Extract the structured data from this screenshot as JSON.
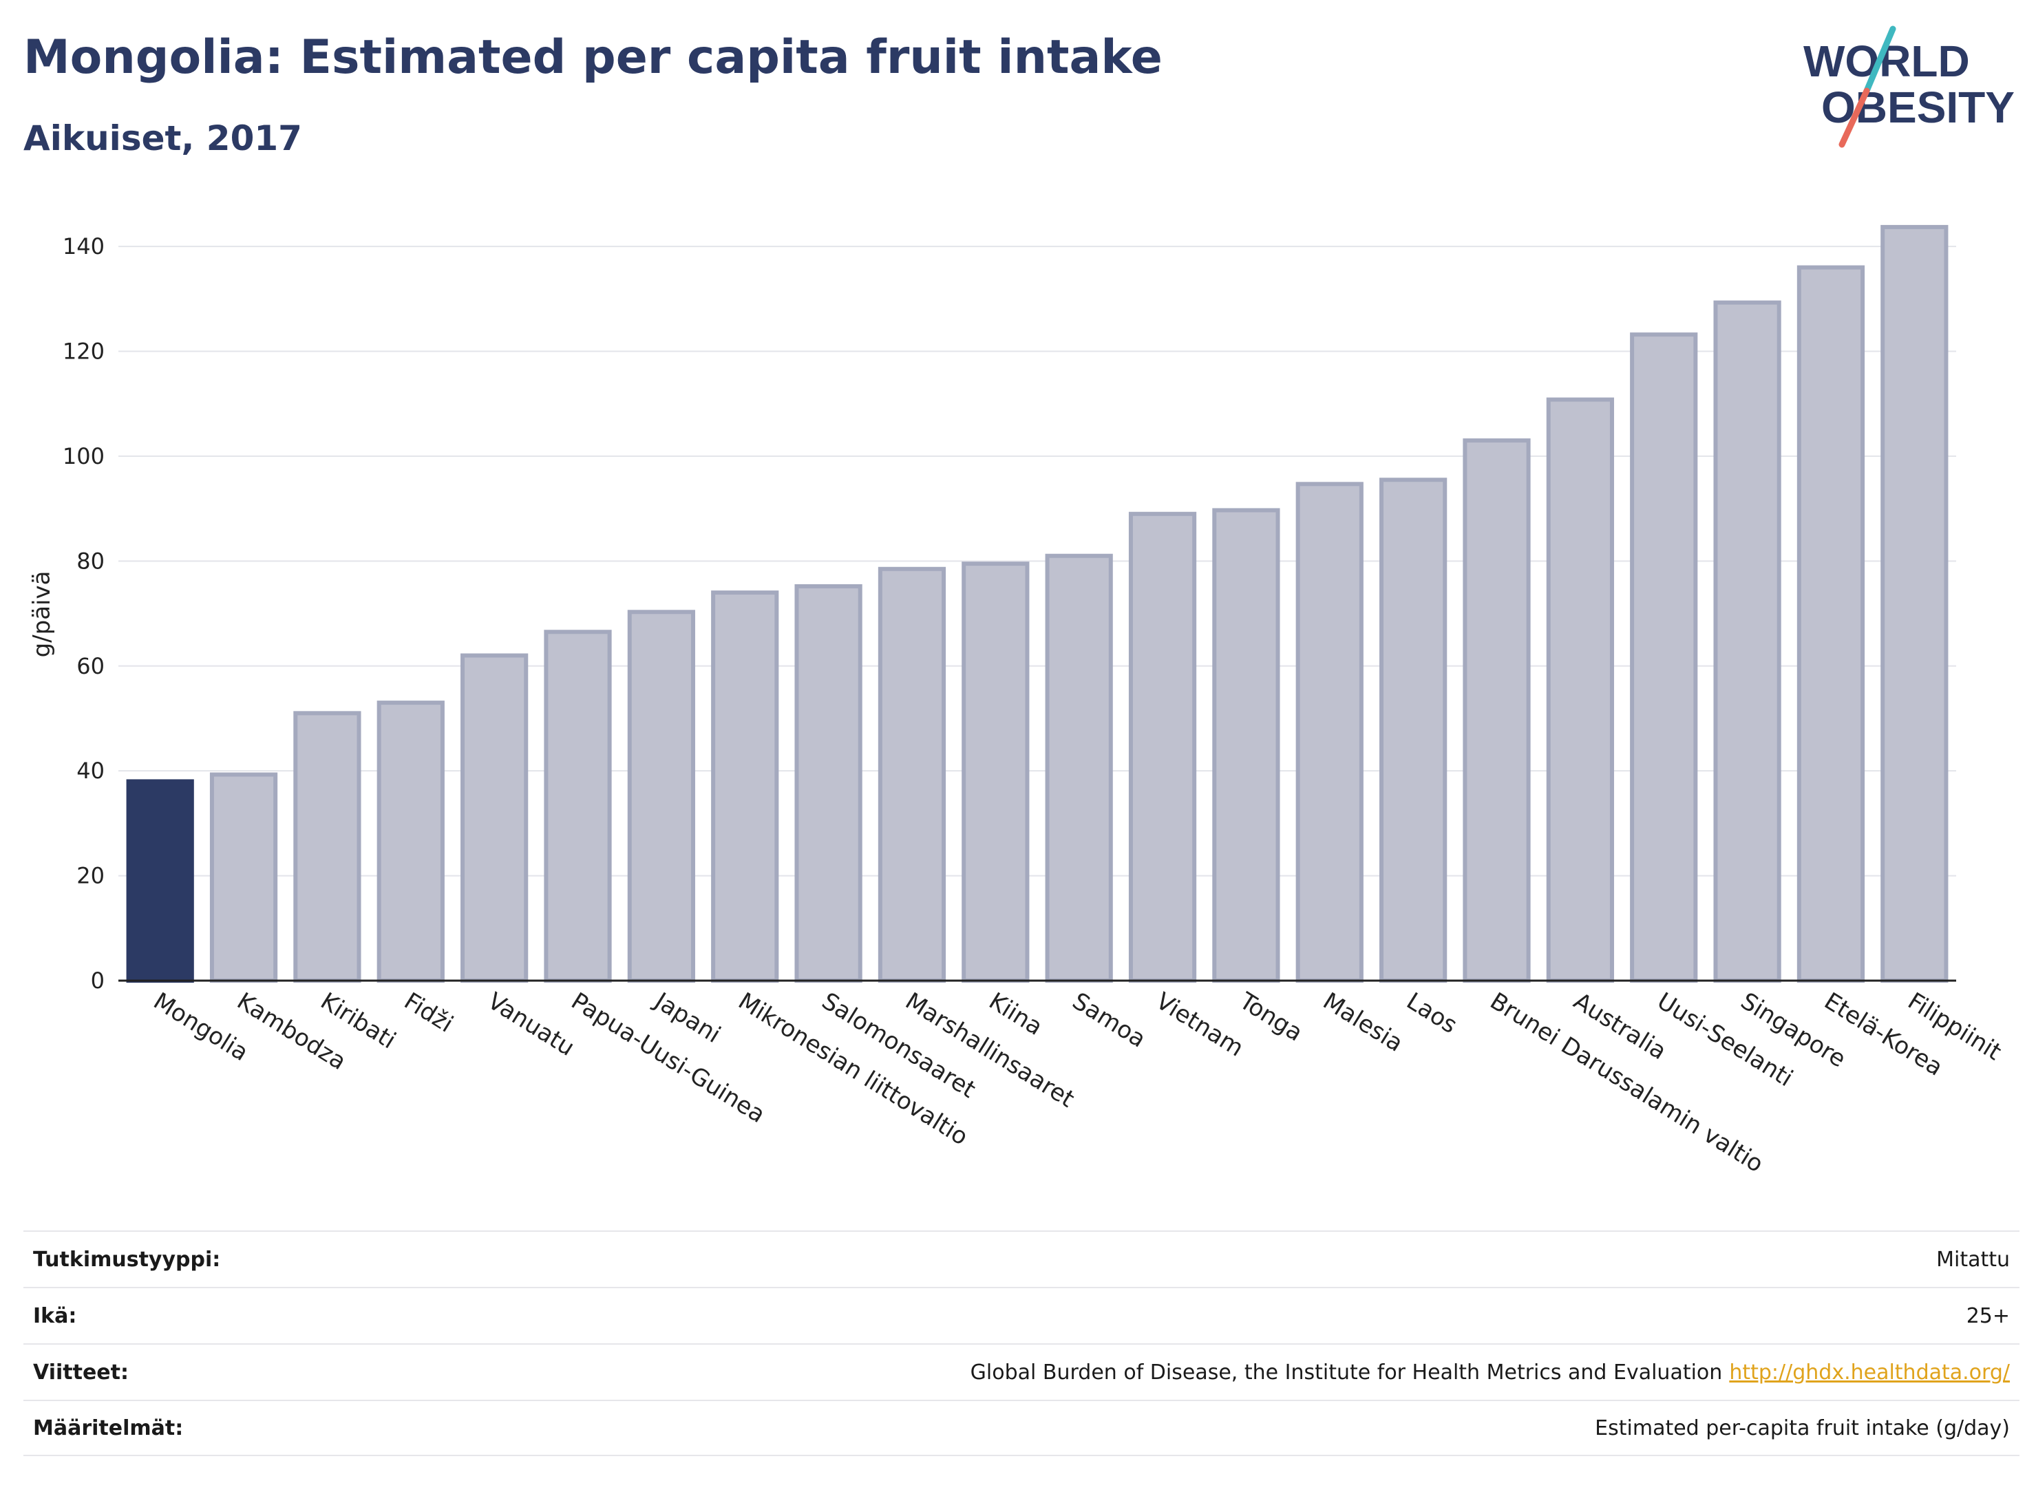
{
  "header": {
    "title": "Mongolia: Estimated per capita fruit intake",
    "subtitle": "Aikuiset, 2017"
  },
  "logo": {
    "line1": "WORLD",
    "line2": "OBESITY"
  },
  "colors": {
    "highlight": "#2c3a64",
    "bar_fill": "#bfc1cf",
    "bar_stroke": "#a4a9be",
    "accent_teal": "#3fb8c0",
    "accent_red": "#e8695a"
  },
  "chart_data": {
    "type": "bar",
    "ylabel": "g/päivä",
    "xlabel": "",
    "ylim": [
      0,
      145
    ],
    "yticks": [
      0,
      20,
      40,
      60,
      80,
      100,
      120,
      140
    ],
    "grid": true,
    "categories": [
      "Mongolia",
      "Kambodza",
      "Kiribati",
      "Fidži",
      "Vanuatu",
      "Papua-Uusi-Guinea",
      "Japani",
      "Mikronesian liittovaltio",
      "Salomonsaaret",
      "Marshallinsaaret",
      "Kiina",
      "Samoa",
      "Vietnam",
      "Tonga",
      "Malesia",
      "Laos",
      "Brunei Darussalamin valtio",
      "Australia",
      "Uusi-Seelanti",
      "Singapore",
      "Etelä-Korea",
      "Filippiinit"
    ],
    "values": [
      38,
      39.3,
      51,
      53,
      62,
      66.5,
      70.3,
      74,
      75.2,
      78.5,
      79.5,
      81,
      89,
      89.7,
      94.7,
      95.5,
      103,
      110.8,
      123.2,
      129.3,
      136,
      143.7
    ],
    "highlight": "Mongolia"
  },
  "info": [
    {
      "label": "Tutkimustyyppi:",
      "value": "Mitattu"
    },
    {
      "label": "Ikä:",
      "value": "25+"
    },
    {
      "label": "Viitteet:",
      "value": "Global Burden of Disease, the Institute for Health Metrics and Evaluation",
      "link": "http://ghdx.healthdata.org/"
    },
    {
      "label": "Määritelmät:",
      "value": "Estimated per-capita fruit intake (g/day)"
    }
  ]
}
